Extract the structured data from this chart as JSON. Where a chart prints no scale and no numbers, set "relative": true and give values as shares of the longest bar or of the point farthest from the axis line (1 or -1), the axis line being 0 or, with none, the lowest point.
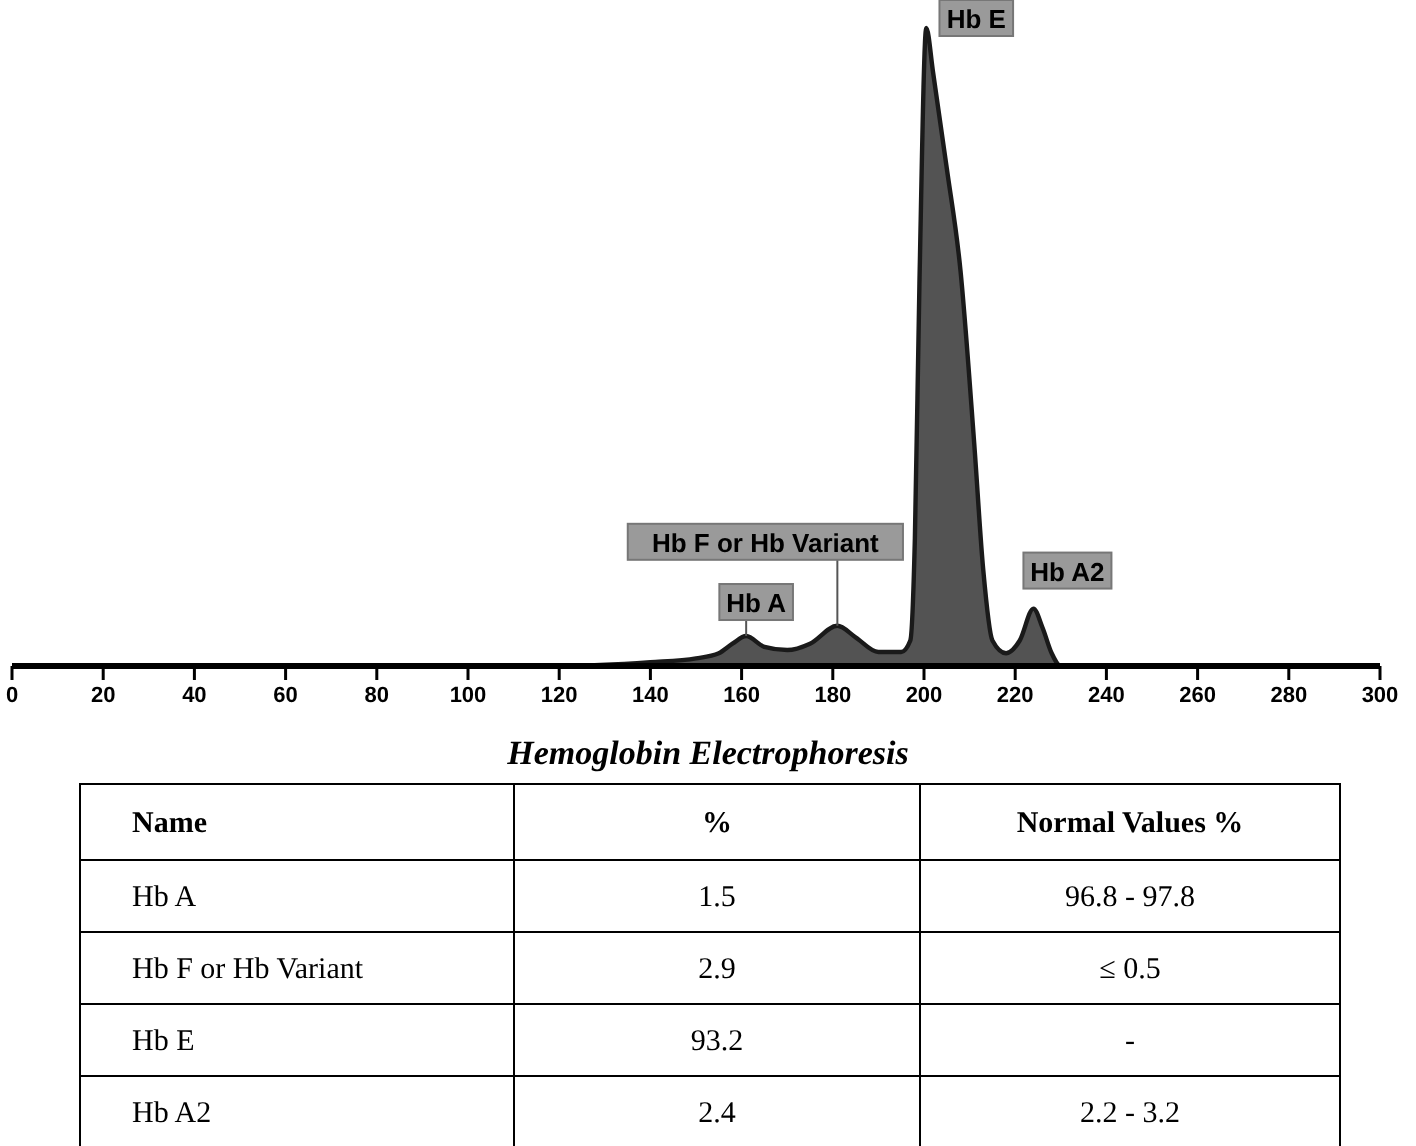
{
  "chart_data": [
    {
      "type": "area",
      "relative": true,
      "x": [
        0,
        120,
        140,
        150,
        155,
        158,
        161,
        165,
        170,
        175,
        181,
        185,
        190,
        195,
        197,
        198,
        199,
        200.5,
        202,
        205,
        208,
        211,
        213,
        215,
        218,
        221,
        224,
        226,
        228,
        230,
        300
      ],
      "series": [
        {
          "color": "#1a1a1a",
          "values": [
            0,
            0,
            0.006,
            0.012,
            0.02,
            0.035,
            0.047,
            0.03,
            0.025,
            0.035,
            0.063,
            0.045,
            0.022,
            0.022,
            0.04,
            0.2,
            0.6,
            1,
            0.93,
            0.78,
            0.62,
            0.35,
            0.15,
            0.04,
            0.02,
            0.04,
            0.09,
            0.06,
            0.02,
            0,
            0
          ]
        }
      ],
      "xlim": [
        0,
        300
      ],
      "xticks": [
        0,
        20,
        40,
        60,
        80,
        100,
        120,
        140,
        160,
        180,
        200,
        220,
        240,
        260,
        280,
        300
      ],
      "annotations": [
        {
          "text": "Hb A",
          "x": 161,
          "y": 0.047
        },
        {
          "text": "Hb F or Hb Variant",
          "x": 181,
          "y": 0.063
        },
        {
          "text": "Hb E",
          "x": 200.5,
          "y": 1
        },
        {
          "text": "Hb A2",
          "x": 224,
          "y": 0.09
        }
      ]
    },
    {
      "type": "other",
      "data_labels": true,
      "title": "Hemoglobin Electrophoresis",
      "xlabel": "Name",
      "categories": [
        "Hb A",
        "Hb F or Hb Variant",
        "Hb E",
        "Hb A2"
      ],
      "series": [
        {
          "name": "%",
          "values": [
            1.5,
            2.9,
            93.2,
            2.4
          ]
        },
        {
          "name": "Normal Values %",
          "values": [
            null,
            null,
            null,
            null
          ],
          "value_labels": [
            "96.8 - 97.8",
            "≤ 0.5",
            "-",
            "2.2 - 3.2"
          ]
        }
      ]
    }
  ]
}
